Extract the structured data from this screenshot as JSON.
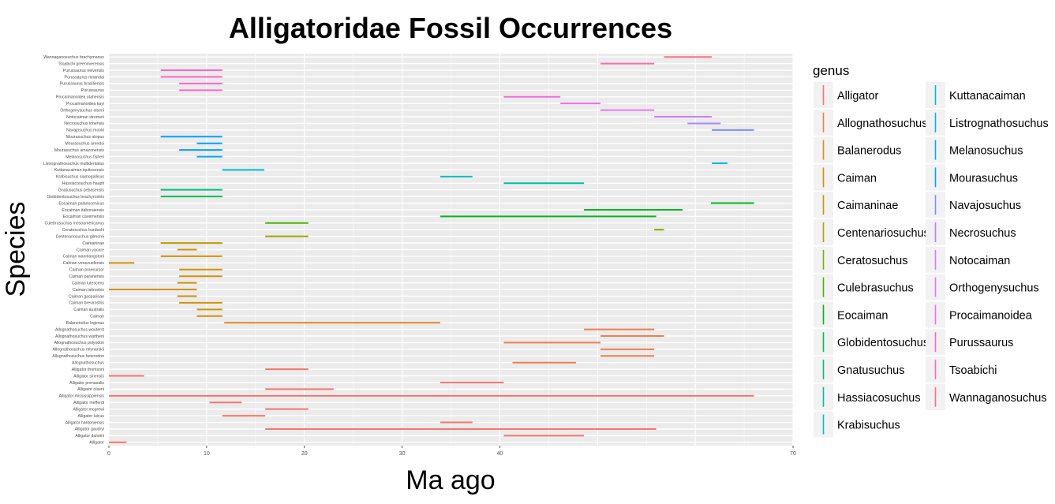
{
  "chart_data": {
    "type": "range",
    "title": "Alligatoridae Fossil Occurrences",
    "xlabel": "Ma ago",
    "ylabel": "Species",
    "xlim": [
      0,
      70
    ],
    "x_ticks": [
      0,
      10,
      20,
      30,
      40,
      70
    ],
    "grid": true,
    "legend": {
      "title": "genus",
      "position": "right",
      "entries": [
        {
          "genus": "Alligator",
          "color": "#F8766D"
        },
        {
          "genus": "Allognathosuchus",
          "color": "#F07F4C"
        },
        {
          "genus": "Balanerodus",
          "color": "#E48A29"
        },
        {
          "genus": "Caiman",
          "color": "#D49200"
        },
        {
          "genus": "Caimaninae",
          "color": "#C09A00"
        },
        {
          "genus": "Centenariosuchus",
          "color": "#A6A300"
        },
        {
          "genus": "Ceratosuchus",
          "color": "#82AC00"
        },
        {
          "genus": "Culebrasuchus",
          "color": "#49B400"
        },
        {
          "genus": "Eocaiman",
          "color": "#00B81F"
        },
        {
          "genus": "Globidentosuchus",
          "color": "#00BC59"
        },
        {
          "genus": "Gnatusuchus",
          "color": "#00BE81"
        },
        {
          "genus": "Hassiacosuchus",
          "color": "#00C0A3"
        },
        {
          "genus": "Krabisuchus",
          "color": "#00C0C1"
        },
        {
          "genus": "Kuttanacaiman",
          "color": "#00BCD8"
        },
        {
          "genus": "Listrognathosuchus",
          "color": "#00B6EB"
        },
        {
          "genus": "Melanosuchus",
          "color": "#00ADFA"
        },
        {
          "genus": "Mourasuchus",
          "color": "#00A2FF"
        },
        {
          "genus": "Navajosuchus",
          "color": "#7B8FFF"
        },
        {
          "genus": "Necrosuchus",
          "color": "#AE87FF"
        },
        {
          "genus": "Notocaiman",
          "color": "#D17DFF"
        },
        {
          "genus": "Orthogenysuchus",
          "color": "#E876FF"
        },
        {
          "genus": "Procaimanoidea",
          "color": "#F66BE9"
        },
        {
          "genus": "Purussaurus",
          "color": "#FD66CE"
        },
        {
          "genus": "Tsoabichi",
          "color": "#FE6BAF"
        },
        {
          "genus": "Wannaganosuchus",
          "color": "#FA708E"
        }
      ]
    },
    "species": [
      {
        "name": "Wannaganosuchus brachymanus",
        "genus": "Wannaganosuchus",
        "start": 56.8,
        "end": 61.7
      },
      {
        "name": "Tsoabichi greenriverensis",
        "genus": "Tsoabichi",
        "start": 50.3,
        "end": 55.8
      },
      {
        "name": "Purussaurus neivensis",
        "genus": "Purussaurus",
        "start": 5.3,
        "end": 11.6
      },
      {
        "name": "Purussaurus mirandai",
        "genus": "Purussaurus",
        "start": 5.3,
        "end": 11.6
      },
      {
        "name": "Purussaurus brasiliensis",
        "genus": "Purussaurus",
        "start": 7.2,
        "end": 11.6
      },
      {
        "name": "Purussaurus",
        "genus": "Purussaurus",
        "start": 7.2,
        "end": 11.6
      },
      {
        "name": "Procaimanoidea utahensis",
        "genus": "Procaimanoidea",
        "start": 40.4,
        "end": 46.2
      },
      {
        "name": "Procaimanoidea kayi",
        "genus": "Procaimanoidea",
        "start": 46.2,
        "end": 50.3
      },
      {
        "name": "Orthogenysuchus olseni",
        "genus": "Orthogenysuchus",
        "start": 50.3,
        "end": 55.8
      },
      {
        "name": "Notocaiman stromeri",
        "genus": "Notocaiman",
        "start": 55.8,
        "end": 61.7
      },
      {
        "name": "Necrosuchus ionensis",
        "genus": "Necrosuchus",
        "start": 59.2,
        "end": 62.6
      },
      {
        "name": "Navajosuchus mooki",
        "genus": "Navajosuchus",
        "start": 61.7,
        "end": 66.0
      },
      {
        "name": "Mourasuchus atopus",
        "genus": "Mourasuchus",
        "start": 5.3,
        "end": 11.6
      },
      {
        "name": "Mourasuchus arendsi",
        "genus": "Mourasuchus",
        "start": 9.0,
        "end": 11.6
      },
      {
        "name": "Mourasuchus amazonensis",
        "genus": "Mourasuchus",
        "start": 7.2,
        "end": 11.6
      },
      {
        "name": "Melanosuchus fisheri",
        "genus": "Melanosuchus",
        "start": 9.0,
        "end": 11.6
      },
      {
        "name": "Listrognathosuchus multidentatus",
        "genus": "Listrognathosuchus",
        "start": 61.7,
        "end": 63.3
      },
      {
        "name": "Kuttanacaiman iquitosensis",
        "genus": "Kuttanacaiman",
        "start": 11.6,
        "end": 15.9
      },
      {
        "name": "Krabisuchus siamogallicus",
        "genus": "Krabisuchus",
        "start": 33.9,
        "end": 37.2
      },
      {
        "name": "Hassiacosuchus haupti",
        "genus": "Hassiacosuchus",
        "start": 40.4,
        "end": 48.6
      },
      {
        "name": "Gnatusuchus pebasensis",
        "genus": "Gnatusuchus",
        "start": 5.3,
        "end": 11.6
      },
      {
        "name": "Globidentosuchus brachyrostris",
        "genus": "Globidentosuchus",
        "start": 5.3,
        "end": 11.6
      },
      {
        "name": "Eocaiman palaeocenicus",
        "genus": "Eocaiman",
        "start": 61.6,
        "end": 66.0
      },
      {
        "name": "Eocaiman itaboraiensis",
        "genus": "Eocaiman",
        "start": 48.6,
        "end": 58.7
      },
      {
        "name": "Eocaiman cavernensis",
        "genus": "Eocaiman",
        "start": 33.9,
        "end": 56.0
      },
      {
        "name": "Culebrasuchus mesoamericanus",
        "genus": "Culebrasuchus",
        "start": 16.0,
        "end": 20.4
      },
      {
        "name": "Ceratosuchus burdoshi",
        "genus": "Ceratosuchus",
        "start": 55.8,
        "end": 56.8
      },
      {
        "name": "Centenariosuchus gilmorei",
        "genus": "Centenariosuchus",
        "start": 16.0,
        "end": 20.4
      },
      {
        "name": "Caimaninae",
        "genus": "Caimaninae",
        "start": 5.3,
        "end": 11.6
      },
      {
        "name": "Caiman yacare",
        "genus": "Caiman",
        "start": 7.0,
        "end": 9.0
      },
      {
        "name": "Caiman wannlangstoni",
        "genus": "Caiman",
        "start": 5.3,
        "end": 11.6
      },
      {
        "name": "Caiman venezuelensis",
        "genus": "Caiman",
        "start": 0.0,
        "end": 2.6
      },
      {
        "name": "Caiman praecursor",
        "genus": "Caiman",
        "start": 7.2,
        "end": 11.6
      },
      {
        "name": "Caiman paranensis",
        "genus": "Caiman",
        "start": 7.2,
        "end": 11.6
      },
      {
        "name": "Caiman lutescens",
        "genus": "Caiman",
        "start": 7.0,
        "end": 9.0
      },
      {
        "name": "Caiman latirostris",
        "genus": "Caiman",
        "start": 0.0,
        "end": 9.0
      },
      {
        "name": "Caiman gasparinae",
        "genus": "Caiman",
        "start": 7.0,
        "end": 9.0
      },
      {
        "name": "Caiman brevirostris",
        "genus": "Caiman",
        "start": 7.2,
        "end": 11.6
      },
      {
        "name": "Caiman australis",
        "genus": "Caiman",
        "start": 9.0,
        "end": 11.6
      },
      {
        "name": "Caiman",
        "genus": "Caiman",
        "start": 9.0,
        "end": 11.6
      },
      {
        "name": "Balanerodus logimus",
        "genus": "Balanerodus",
        "start": 11.8,
        "end": 33.9
      },
      {
        "name": "Allognathosuchus wouterst",
        "genus": "Allognathosuchus",
        "start": 48.6,
        "end": 55.8
      },
      {
        "name": "Allognathosuchus wartheni",
        "genus": "Allognathosuchus",
        "start": 50.3,
        "end": 56.8
      },
      {
        "name": "Allognathosuchus polyodon",
        "genus": "Allognathosuchus",
        "start": 40.4,
        "end": 50.3
      },
      {
        "name": "Allognathosuchus mlynarskii",
        "genus": "Allognathosuchus",
        "start": 50.3,
        "end": 55.8
      },
      {
        "name": "Allognathosuchus heterodon",
        "genus": "Allognathosuchus",
        "start": 50.3,
        "end": 55.8
      },
      {
        "name": "Allognathosuchus",
        "genus": "Allognathosuchus",
        "start": 41.3,
        "end": 47.8
      },
      {
        "name": "Alligator thomsoni",
        "genus": "Alligator",
        "start": 16.0,
        "end": 20.4
      },
      {
        "name": "Alligator sinensis",
        "genus": "Alligator",
        "start": 0.0,
        "end": 3.6
      },
      {
        "name": "Alligator prenasalis",
        "genus": "Alligator",
        "start": 33.9,
        "end": 40.4
      },
      {
        "name": "Alligator olseni",
        "genus": "Alligator",
        "start": 16.0,
        "end": 23.0
      },
      {
        "name": "Alligator mississippiensis",
        "genus": "Alligator",
        "start": 0.0,
        "end": 66.0
      },
      {
        "name": "Alligator mefferdi",
        "genus": "Alligator",
        "start": 10.3,
        "end": 13.6
      },
      {
        "name": "Alligator mcgrewi",
        "genus": "Alligator",
        "start": 16.0,
        "end": 20.4
      },
      {
        "name": "Alligator luicus",
        "genus": "Alligator",
        "start": 11.6,
        "end": 16.0
      },
      {
        "name": "Alligator hantoniensis",
        "genus": "Alligator",
        "start": 33.9,
        "end": 37.2
      },
      {
        "name": "Alligator gaudryi",
        "genus": "Alligator",
        "start": 16.0,
        "end": 56.0
      },
      {
        "name": "Alligator darwini",
        "genus": "Alligator",
        "start": 40.4,
        "end": 48.6
      },
      {
        "name": "Alligator",
        "genus": "Alligator",
        "start": 0.0,
        "end": 1.8
      }
    ]
  }
}
